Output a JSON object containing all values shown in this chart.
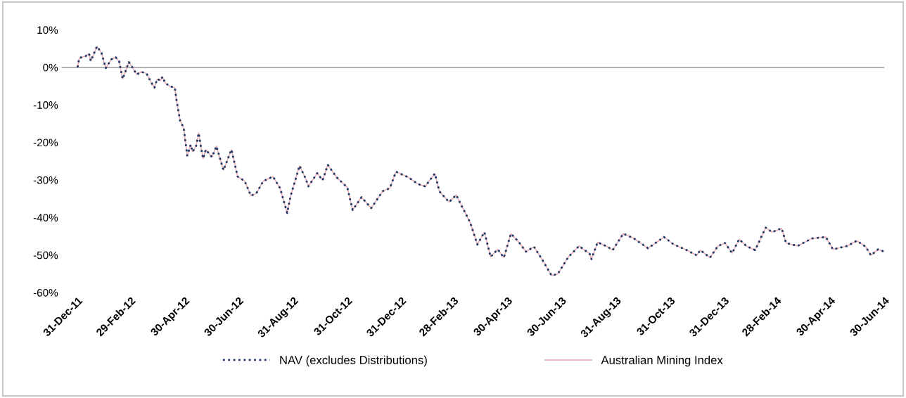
{
  "chart_data": {
    "type": "line",
    "x": [
      "2011-12-31",
      "2012-01-02",
      "2012-01-09",
      "2012-01-13",
      "2012-01-15",
      "2012-01-22",
      "2012-01-27",
      "2012-02-01",
      "2012-02-07",
      "2012-02-12",
      "2012-02-16",
      "2012-02-20",
      "2012-02-23",
      "2012-02-27",
      "2012-03-02",
      "2012-03-07",
      "2012-03-12",
      "2012-03-18",
      "2012-03-23",
      "2012-03-27",
      "2012-03-30",
      "2012-04-03",
      "2012-04-05",
      "2012-04-08",
      "2012-04-13",
      "2012-04-19",
      "2012-04-21",
      "2012-04-25",
      "2012-04-29",
      "2012-05-03",
      "2012-05-07",
      "2012-05-09",
      "2012-05-13",
      "2012-05-16",
      "2012-05-19",
      "2012-05-21",
      "2012-05-24",
      "2012-05-31",
      "2012-06-05",
      "2012-06-13",
      "2012-06-22",
      "2012-06-29",
      "2012-07-07",
      "2012-07-14",
      "2012-07-20",
      "2012-07-28",
      "2012-08-08",
      "2012-08-16",
      "2012-08-24",
      "2012-08-28",
      "2012-09-07",
      "2012-09-14",
      "2012-09-17",
      "2012-09-27",
      "2012-10-03",
      "2012-10-09",
      "2012-10-19",
      "2012-10-31",
      "2012-11-06",
      "2012-11-16",
      "2012-11-27",
      "2012-12-10",
      "2012-12-18",
      "2012-12-25",
      "2013-01-08",
      "2013-01-19",
      "2013-01-27",
      "2013-02-07",
      "2013-02-12",
      "2013-02-23",
      "2013-03-03",
      "2013-03-19",
      "2013-03-27",
      "2013-04-04",
      "2013-04-11",
      "2013-04-19",
      "2013-04-26",
      "2013-05-04",
      "2013-05-13",
      "2013-05-21",
      "2013-05-30",
      "2013-06-08",
      "2013-06-19",
      "2013-06-26",
      "2013-07-08",
      "2013-07-20",
      "2013-08-01",
      "2013-08-03",
      "2013-08-10",
      "2013-08-21",
      "2013-08-27",
      "2013-09-08",
      "2013-09-20",
      "2013-10-06",
      "2013-10-24",
      "2013-11-04",
      "2013-11-17",
      "2013-11-30",
      "2013-12-04",
      "2013-12-15",
      "2013-12-24",
      "2014-01-01",
      "2014-01-09",
      "2014-01-17",
      "2014-01-25",
      "2014-02-04",
      "2014-02-16",
      "2014-02-23",
      "2014-03-06",
      "2014-03-11",
      "2014-03-24",
      "2014-04-09",
      "2014-04-25",
      "2014-05-03",
      "2014-05-19",
      "2014-05-30",
      "2014-06-09",
      "2014-06-15",
      "2014-06-23",
      "2014-06-30"
    ],
    "series": [
      {
        "name": "Australian Mining Index",
        "color": "#e8a3ad",
        "line_style": "solid",
        "values": [
          0,
          2.5,
          3,
          3.7,
          1.7,
          5.6,
          3.9,
          -0.2,
          2.1,
          2.7,
          1.7,
          -3.1,
          -1.2,
          1.4,
          0,
          -1.9,
          -1.2,
          -1.6,
          -3.9,
          -5.4,
          -3.1,
          -3.5,
          -2.5,
          -4.1,
          -5,
          -5.4,
          -8.9,
          -14.2,
          -16.1,
          -23.5,
          -20.6,
          -22.5,
          -21,
          -17.5,
          -21.9,
          -24.3,
          -21.9,
          -23.9,
          -21,
          -27.4,
          -21.9,
          -29.1,
          -30.3,
          -34.2,
          -33.6,
          -30.3,
          -29.1,
          -32.2,
          -38.8,
          -34.2,
          -26.2,
          -29.7,
          -31.7,
          -28.2,
          -30.1,
          -26,
          -29.3,
          -32,
          -38,
          -34.6,
          -37.5,
          -33,
          -32.2,
          -27.8,
          -29.3,
          -31.1,
          -31.7,
          -28.3,
          -33,
          -35.9,
          -34,
          -41.4,
          -47.2,
          -43.9,
          -50.5,
          -48.5,
          -50.7,
          -44.3,
          -46.6,
          -49.1,
          -47.8,
          -51.1,
          -55.5,
          -55,
          -50.5,
          -47.6,
          -49.7,
          -51.1,
          -46.6,
          -47.8,
          -48.7,
          -44.3,
          -45.6,
          -48.2,
          -45.2,
          -47.2,
          -48.5,
          -50.1,
          -48.7,
          -50.7,
          -47.6,
          -46.8,
          -49.5,
          -45.8,
          -47.6,
          -48.7,
          -42.7,
          -43.9,
          -42.9,
          -46.8,
          -47.6,
          -45.6,
          -45.2,
          -48.5,
          -47.6,
          -46.2,
          -47.8,
          -50.1,
          -48.5,
          -49.1
        ]
      },
      {
        "name": "NAV (excludes Distributions)",
        "color": "#1f3864",
        "line_style": "dotted",
        "values": [
          0,
          2.5,
          3,
          3.7,
          1.7,
          5.6,
          3.9,
          -0.2,
          2.1,
          2.7,
          1.7,
          -3.1,
          -1.2,
          1.4,
          0,
          -1.9,
          -1.2,
          -1.6,
          -3.9,
          -5.4,
          -3.1,
          -3.5,
          -2.5,
          -4.1,
          -5,
          -5.4,
          -8.9,
          -14.2,
          -16.1,
          -23.5,
          -20.6,
          -22.5,
          -21,
          -17.5,
          -21.9,
          -24.3,
          -21.9,
          -23.9,
          -21,
          -27.4,
          -21.9,
          -29.1,
          -30.3,
          -34.2,
          -33.6,
          -30.3,
          -29.1,
          -32.2,
          -38.8,
          -34.2,
          -26.2,
          -29.7,
          -31.7,
          -28.2,
          -30.1,
          -26,
          -29.3,
          -32,
          -38,
          -34.6,
          -37.5,
          -33,
          -32.2,
          -27.8,
          -29.3,
          -31.1,
          -31.7,
          -28.3,
          -33,
          -35.9,
          -34,
          -41.4,
          -47.2,
          -43.9,
          -50.5,
          -48.5,
          -50.7,
          -44.3,
          -46.6,
          -49.1,
          -47.8,
          -51.1,
          -55.5,
          -55,
          -50.5,
          -47.6,
          -49.7,
          -51.1,
          -46.6,
          -47.8,
          -48.7,
          -44.3,
          -45.6,
          -48.2,
          -45.2,
          -47.2,
          -48.5,
          -50.1,
          -48.7,
          -50.7,
          -47.6,
          -46.8,
          -49.5,
          -45.8,
          -47.6,
          -48.7,
          -42.7,
          -43.9,
          -42.9,
          -46.8,
          -47.6,
          -45.6,
          -45.2,
          -48.5,
          -47.6,
          -46.2,
          -47.8,
          -50.1,
          -48.5,
          -49.1
        ]
      }
    ],
    "xlim": [
      "2011-12-13",
      "2014-06-30"
    ],
    "xticks": [
      {
        "value": "2011-12-31",
        "label": "31-Dec-11"
      },
      {
        "value": "2012-02-29",
        "label": "29-Feb-12"
      },
      {
        "value": "2012-04-30",
        "label": "30-Apr-12"
      },
      {
        "value": "2012-06-30",
        "label": "30-Jun-12"
      },
      {
        "value": "2012-08-31",
        "label": "31-Aug-12"
      },
      {
        "value": "2012-10-31",
        "label": "31-Oct-12"
      },
      {
        "value": "2012-12-31",
        "label": "31-Dec-12"
      },
      {
        "value": "2013-02-28",
        "label": "28-Feb-13"
      },
      {
        "value": "2013-04-30",
        "label": "30-Apr-13"
      },
      {
        "value": "2013-06-30",
        "label": "30-Jun-13"
      },
      {
        "value": "2013-08-31",
        "label": "31-Aug-13"
      },
      {
        "value": "2013-10-31",
        "label": "31-Oct-13"
      },
      {
        "value": "2013-12-31",
        "label": "31-Dec-13"
      },
      {
        "value": "2014-02-28",
        "label": "28-Feb-14"
      },
      {
        "value": "2014-04-30",
        "label": "30-Apr-14"
      },
      {
        "value": "2014-06-30",
        "label": "30-Jun-14"
      }
    ],
    "ylim": [
      -60,
      10
    ],
    "yticks": [
      {
        "value": 10,
        "label": "10%"
      },
      {
        "value": 0,
        "label": "0%"
      },
      {
        "value": -10,
        "label": "-10%"
      },
      {
        "value": -20,
        "label": "-20%"
      },
      {
        "value": -30,
        "label": "-30%"
      },
      {
        "value": -40,
        "label": "-40%"
      },
      {
        "value": -50,
        "label": "-50%"
      },
      {
        "value": -60,
        "label": "-60%"
      }
    ],
    "ref_lines": [
      {
        "axis": "y",
        "value": 0,
        "color": "#a6a6a6"
      }
    ],
    "grid": false,
    "legend": "bottom"
  }
}
